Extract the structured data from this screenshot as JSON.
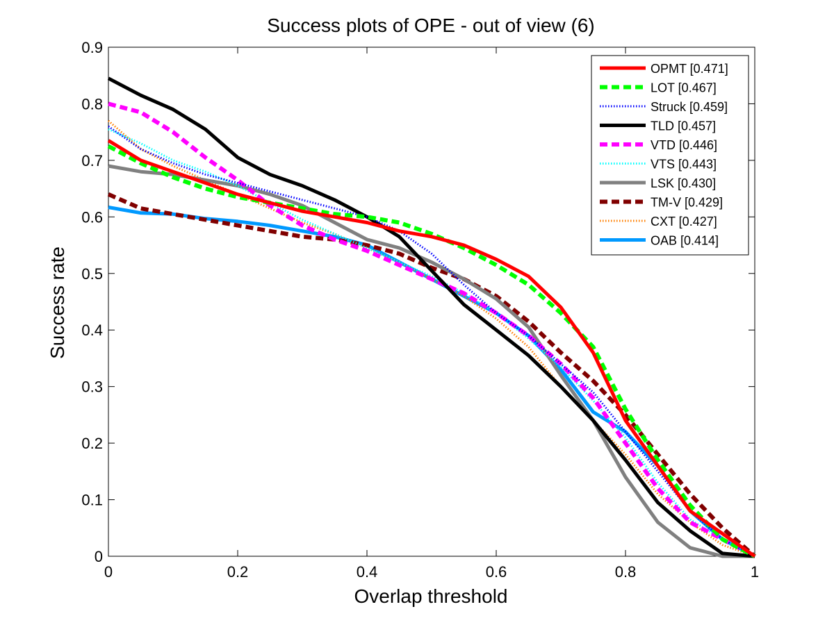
{
  "chart_data": {
    "type": "line",
    "title": "Success plots of OPE - out of view (6)",
    "xlabel": "Overlap threshold",
    "ylabel": "Success rate",
    "xlim": [
      0,
      1
    ],
    "ylim": [
      0,
      0.9
    ],
    "xticks": [
      0,
      0.2,
      0.4,
      0.6,
      0.8,
      1
    ],
    "yticks": [
      0,
      0.1,
      0.2,
      0.3,
      0.4,
      0.5,
      0.6,
      0.7,
      0.8,
      0.9
    ],
    "xtick_labels": [
      "0",
      "0.2",
      "0.4",
      "0.6",
      "0.8",
      "1"
    ],
    "ytick_labels": [
      "0",
      "0.1",
      "0.2",
      "0.3",
      "0.4",
      "0.5",
      "0.6",
      "0.7",
      "0.8",
      "0.9"
    ],
    "grid": false,
    "legend_position": "top-right",
    "series": [
      {
        "name": "OPMT [0.471]",
        "color": "#ff0000",
        "style": "solid",
        "x": [
          0,
          0.05,
          0.1,
          0.15,
          0.2,
          0.25,
          0.3,
          0.35,
          0.4,
          0.45,
          0.5,
          0.55,
          0.6,
          0.65,
          0.7,
          0.75,
          0.8,
          0.85,
          0.9,
          0.95,
          1
        ],
        "y": [
          0.735,
          0.7,
          0.68,
          0.66,
          0.64,
          0.625,
          0.61,
          0.6,
          0.59,
          0.575,
          0.565,
          0.55,
          0.525,
          0.495,
          0.44,
          0.36,
          0.24,
          0.16,
          0.08,
          0.04,
          0
        ]
      },
      {
        "name": "LOT [0.467]",
        "color": "#00ff00",
        "style": "dash",
        "x": [
          0,
          0.05,
          0.1,
          0.15,
          0.2,
          0.25,
          0.3,
          0.35,
          0.4,
          0.45,
          0.5,
          0.55,
          0.6,
          0.65,
          0.7,
          0.75,
          0.8,
          0.85,
          0.9,
          0.95,
          1
        ],
        "y": [
          0.725,
          0.695,
          0.67,
          0.65,
          0.635,
          0.625,
          0.615,
          0.605,
          0.6,
          0.59,
          0.57,
          0.545,
          0.515,
          0.48,
          0.43,
          0.37,
          0.26,
          0.17,
          0.09,
          0.03,
          0
        ]
      },
      {
        "name": "Struck [0.459]",
        "color": "#0000ff",
        "style": "dot",
        "x": [
          0,
          0.05,
          0.1,
          0.15,
          0.2,
          0.25,
          0.3,
          0.35,
          0.4,
          0.45,
          0.5,
          0.55,
          0.6,
          0.65,
          0.7,
          0.75,
          0.8,
          0.85,
          0.9,
          0.95,
          1
        ],
        "y": [
          0.76,
          0.72,
          0.695,
          0.675,
          0.66,
          0.645,
          0.63,
          0.615,
          0.6,
          0.575,
          0.535,
          0.48,
          0.43,
          0.39,
          0.34,
          0.29,
          0.22,
          0.15,
          0.08,
          0.03,
          0
        ]
      },
      {
        "name": "TLD [0.457]",
        "color": "#000000",
        "style": "solid",
        "x": [
          0,
          0.05,
          0.1,
          0.15,
          0.2,
          0.25,
          0.3,
          0.35,
          0.4,
          0.45,
          0.5,
          0.55,
          0.6,
          0.65,
          0.7,
          0.75,
          0.8,
          0.85,
          0.9,
          0.95,
          1
        ],
        "y": [
          0.845,
          0.815,
          0.79,
          0.755,
          0.705,
          0.675,
          0.655,
          0.63,
          0.6,
          0.565,
          0.505,
          0.445,
          0.4,
          0.355,
          0.3,
          0.24,
          0.17,
          0.095,
          0.045,
          0.005,
          0
        ]
      },
      {
        "name": "VTD [0.446]",
        "color": "#ff00ff",
        "style": "dash",
        "x": [
          0,
          0.05,
          0.1,
          0.15,
          0.2,
          0.25,
          0.3,
          0.35,
          0.4,
          0.45,
          0.5,
          0.55,
          0.6,
          0.65,
          0.7,
          0.75,
          0.8,
          0.85,
          0.9,
          0.95,
          1
        ],
        "y": [
          0.8,
          0.785,
          0.75,
          0.705,
          0.665,
          0.62,
          0.585,
          0.56,
          0.54,
          0.515,
          0.49,
          0.465,
          0.43,
          0.39,
          0.34,
          0.28,
          0.2,
          0.12,
          0.06,
          0.03,
          0
        ]
      },
      {
        "name": "VTS [0.443]",
        "color": "#00ffff",
        "style": "dot",
        "x": [
          0,
          0.05,
          0.1,
          0.15,
          0.2,
          0.25,
          0.3,
          0.35,
          0.4,
          0.45,
          0.5,
          0.55,
          0.6,
          0.65,
          0.7,
          0.75,
          0.8,
          0.85,
          0.9,
          0.95,
          1
        ],
        "y": [
          0.755,
          0.73,
          0.7,
          0.68,
          0.655,
          0.625,
          0.595,
          0.57,
          0.545,
          0.52,
          0.495,
          0.465,
          0.43,
          0.385,
          0.335,
          0.275,
          0.21,
          0.13,
          0.065,
          0.03,
          0
        ]
      },
      {
        "name": "LSK [0.430]",
        "color": "#808080",
        "style": "solid",
        "x": [
          0,
          0.05,
          0.1,
          0.15,
          0.2,
          0.25,
          0.3,
          0.35,
          0.4,
          0.45,
          0.5,
          0.55,
          0.6,
          0.65,
          0.7,
          0.75,
          0.8,
          0.85,
          0.9,
          0.95,
          1
        ],
        "y": [
          0.69,
          0.68,
          0.675,
          0.665,
          0.655,
          0.64,
          0.62,
          0.59,
          0.56,
          0.545,
          0.52,
          0.49,
          0.455,
          0.405,
          0.32,
          0.24,
          0.14,
          0.06,
          0.015,
          0,
          0
        ]
      },
      {
        "name": "TM-V [0.429]",
        "color": "#800000",
        "style": "dash",
        "x": [
          0,
          0.05,
          0.1,
          0.15,
          0.2,
          0.25,
          0.3,
          0.35,
          0.4,
          0.45,
          0.5,
          0.55,
          0.6,
          0.65,
          0.7,
          0.75,
          0.8,
          0.85,
          0.9,
          0.95,
          1
        ],
        "y": [
          0.64,
          0.615,
          0.605,
          0.595,
          0.585,
          0.575,
          0.565,
          0.56,
          0.55,
          0.535,
          0.51,
          0.49,
          0.46,
          0.415,
          0.36,
          0.31,
          0.25,
          0.18,
          0.11,
          0.05,
          0
        ]
      },
      {
        "name": "CXT [0.427]",
        "color": "#ff7f00",
        "style": "dot",
        "x": [
          0,
          0.05,
          0.1,
          0.15,
          0.2,
          0.25,
          0.3,
          0.35,
          0.4,
          0.45,
          0.5,
          0.55,
          0.6,
          0.65,
          0.7,
          0.75,
          0.8,
          0.85,
          0.9,
          0.95,
          1
        ],
        "y": [
          0.77,
          0.72,
          0.69,
          0.665,
          0.64,
          0.615,
          0.59,
          0.57,
          0.545,
          0.52,
          0.49,
          0.46,
          0.42,
          0.37,
          0.3,
          0.24,
          0.18,
          0.11,
          0.06,
          0.02,
          0
        ]
      },
      {
        "name": "OAB [0.414]",
        "color": "#0099ff",
        "style": "solid",
        "x": [
          0,
          0.05,
          0.1,
          0.15,
          0.2,
          0.25,
          0.3,
          0.35,
          0.4,
          0.45,
          0.5,
          0.55,
          0.6,
          0.65,
          0.7,
          0.75,
          0.8,
          0.85,
          0.9,
          0.95,
          1
        ],
        "y": [
          0.617,
          0.607,
          0.605,
          0.597,
          0.592,
          0.585,
          0.575,
          0.565,
          0.55,
          0.52,
          0.49,
          0.46,
          0.43,
          0.39,
          0.33,
          0.255,
          0.22,
          0.16,
          0.08,
          0.03,
          0
        ]
      }
    ]
  }
}
